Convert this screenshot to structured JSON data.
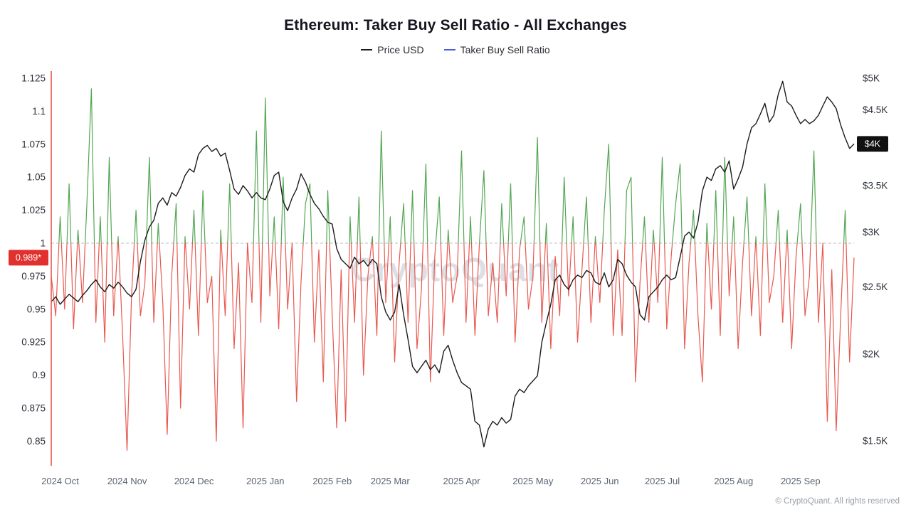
{
  "watermark": "CryptoQuant",
  "footer": "© CryptoQuant. All rights reserved",
  "chart_data": {
    "type": "line",
    "title": "Ethereum: Taker Buy Sell Ratio - All Exchanges",
    "legend_position": "top-center",
    "grid": "off",
    "baseline": 1.0,
    "colors": {
      "price_line": "#1c1c1c",
      "ratio_legend": "#4a5cdb",
      "ratio_above": "#53a653",
      "ratio_below": "#e8584f",
      "baseline_dash": "#b9bcc6",
      "left_axis_line": "#e8584f",
      "ratio_badge_bg": "#e0312e",
      "price_badge_bg": "#111111"
    },
    "left_axis": {
      "ticks": [
        0.85,
        0.875,
        0.9,
        0.925,
        0.95,
        0.975,
        1,
        1.025,
        1.05,
        1.075,
        1.1,
        1.125
      ],
      "tick_labels": [
        "0.85",
        "0.875",
        "0.9",
        "0.925",
        "0.95",
        "0.975",
        "1",
        "1.025",
        "1.05",
        "1.075",
        "1.1",
        "1.125"
      ],
      "range": [
        0.8315,
        1.1304
      ],
      "last_value": 0.989,
      "last_label": "0.989*"
    },
    "right_axis": {
      "scale": "log",
      "tick_values_k": [
        1.5,
        2,
        2.5,
        3,
        3.5,
        4,
        4.5,
        5
      ],
      "tick_labels": [
        "$1.5K",
        "$2K",
        "$2.5K",
        "$3K",
        "$3.5K",
        "$4K",
        "$4.5K",
        "$5K"
      ],
      "last_value_k": 4.02,
      "last_label": "$4K"
    },
    "x_ticks": [
      {
        "i": 2,
        "label": "2024 Oct"
      },
      {
        "i": 17,
        "label": "2024 Nov"
      },
      {
        "i": 32,
        "label": "2024 Dec"
      },
      {
        "i": 48,
        "label": "2025 Jan"
      },
      {
        "i": 63,
        "label": "2025 Feb"
      },
      {
        "i": 76,
        "label": "2025 Mar"
      },
      {
        "i": 92,
        "label": "2025 Apr"
      },
      {
        "i": 108,
        "label": "2025 May"
      },
      {
        "i": 123,
        "label": "2025 Jun"
      },
      {
        "i": 137,
        "label": "2025 Jul"
      },
      {
        "i": 153,
        "label": "2025 Aug"
      },
      {
        "i": 168,
        "label": "2025 Sep"
      }
    ],
    "series": [
      {
        "name": "Price USD",
        "axis": "right",
        "unit": "USD thousands",
        "values": [
          2.38,
          2.42,
          2.36,
          2.4,
          2.44,
          2.41,
          2.38,
          2.43,
          2.47,
          2.52,
          2.56,
          2.5,
          2.46,
          2.52,
          2.49,
          2.54,
          2.5,
          2.45,
          2.42,
          2.48,
          2.72,
          2.92,
          3.05,
          3.12,
          3.3,
          3.36,
          3.28,
          3.42,
          3.38,
          3.48,
          3.62,
          3.7,
          3.66,
          3.88,
          3.96,
          4.0,
          3.92,
          3.96,
          3.86,
          3.9,
          3.68,
          3.46,
          3.4,
          3.5,
          3.44,
          3.36,
          3.42,
          3.36,
          3.34,
          3.46,
          3.62,
          3.66,
          3.32,
          3.22,
          3.36,
          3.46,
          3.64,
          3.54,
          3.4,
          3.3,
          3.24,
          3.16,
          3.1,
          3.08,
          2.84,
          2.74,
          2.7,
          2.66,
          2.76,
          2.7,
          2.73,
          2.68,
          2.74,
          2.7,
          2.42,
          2.3,
          2.24,
          2.3,
          2.52,
          2.28,
          2.1,
          1.92,
          1.88,
          1.92,
          1.96,
          1.9,
          1.93,
          1.88,
          2.02,
          2.06,
          1.96,
          1.88,
          1.82,
          1.8,
          1.78,
          1.6,
          1.58,
          1.47,
          1.56,
          1.6,
          1.58,
          1.62,
          1.59,
          1.61,
          1.74,
          1.78,
          1.76,
          1.8,
          1.83,
          1.86,
          2.08,
          2.22,
          2.36,
          2.56,
          2.6,
          2.52,
          2.48,
          2.56,
          2.6,
          2.58,
          2.64,
          2.62,
          2.54,
          2.52,
          2.62,
          2.5,
          2.56,
          2.74,
          2.7,
          2.6,
          2.54,
          2.5,
          2.28,
          2.24,
          2.42,
          2.46,
          2.5,
          2.56,
          2.6,
          2.56,
          2.58,
          2.76,
          2.96,
          3.0,
          2.94,
          3.1,
          3.44,
          3.6,
          3.56,
          3.7,
          3.74,
          3.66,
          3.8,
          3.46,
          3.58,
          3.72,
          4.02,
          4.24,
          4.3,
          4.44,
          4.6,
          4.32,
          4.42,
          4.74,
          4.95,
          4.62,
          4.56,
          4.42,
          4.3,
          4.36,
          4.3,
          4.34,
          4.42,
          4.56,
          4.7,
          4.62,
          4.52,
          4.28,
          4.1,
          3.96,
          4.02
        ]
      },
      {
        "name": "Taker Buy Sell Ratio",
        "axis": "left",
        "values": [
          0.975,
          0.945,
          1.02,
          0.95,
          1.045,
          0.935,
          1.01,
          0.955,
          1.03,
          1.117,
          0.94,
          1.02,
          0.925,
          1.065,
          0.945,
          1.005,
          0.93,
          0.843,
          0.96,
          1.025,
          0.945,
          0.97,
          1.065,
          0.94,
          1.015,
          0.955,
          0.855,
          0.975,
          1.03,
          0.875,
          1.005,
          0.95,
          1.025,
          0.93,
          1.04,
          0.955,
          0.975,
          0.85,
          1.01,
          0.945,
          1.045,
          0.92,
          0.985,
          0.86,
          1.0,
          0.955,
          1.085,
          0.94,
          1.11,
          0.96,
          1.02,
          0.935,
          1.05,
          0.95,
          1.0,
          0.88,
          0.97,
          1.03,
          1.045,
          0.925,
          0.995,
          0.895,
          1.04,
          0.945,
          0.86,
          0.98,
          0.865,
          1.02,
          0.94,
          1.035,
          0.9,
          0.975,
          1.005,
          0.93,
          1.085,
          0.955,
          1.02,
          0.91,
          0.985,
          1.03,
          0.94,
          1.04,
          0.92,
          0.965,
          1.06,
          0.895,
          0.99,
          1.035,
          0.93,
          1.01,
          0.955,
          0.975,
          1.07,
          0.94,
          1.02,
          0.93,
          1.0,
          1.055,
          0.945,
          0.985,
          0.94,
          1.03,
          0.96,
          1.045,
          0.925,
          0.995,
          1.02,
          0.95,
          0.975,
          1.08,
          0.94,
          1.015,
          0.92,
          0.99,
          0.945,
          1.05,
          0.96,
          1.02,
          0.925,
          0.98,
          1.035,
          0.94,
          1.005,
          0.955,
          1.025,
          1.075,
          0.93,
          0.995,
          0.93,
          1.04,
          1.05,
          0.895,
          0.97,
          1.02,
          0.94,
          1.01,
          0.955,
          1.065,
          0.935,
          0.99,
          1.03,
          1.06,
          0.92,
          0.985,
          1.025,
          0.945,
          0.895,
          1.015,
          0.95,
          1.04,
          0.93,
          1.065,
          0.96,
          1.02,
          0.92,
          0.985,
          1.035,
          0.945,
          1.005,
          0.93,
          1.045,
          0.955,
          0.975,
          1.025,
          0.94,
          1.01,
          0.92,
          0.99,
          1.03,
          0.945,
          0.975,
          1.07,
          0.94,
          1.0,
          0.865,
          0.98,
          0.858,
          0.945,
          1.025,
          0.91,
          0.989
        ]
      }
    ]
  }
}
